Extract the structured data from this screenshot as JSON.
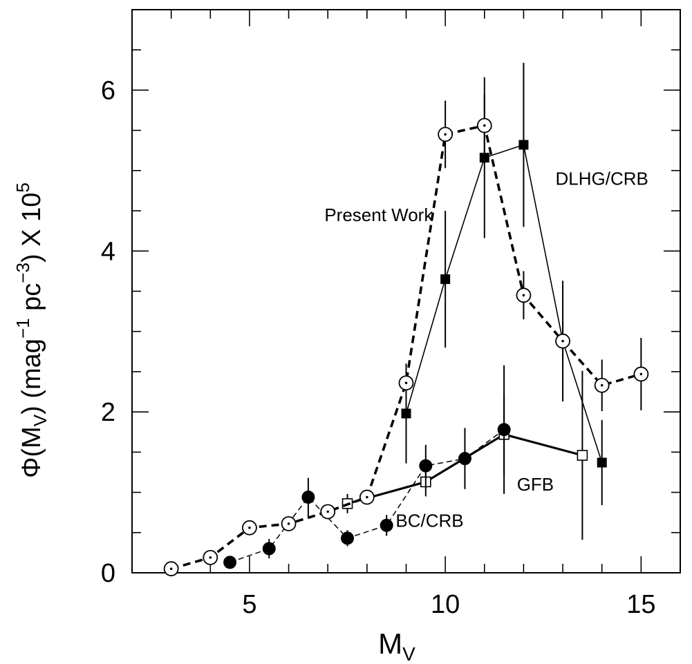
{
  "chart_data": {
    "type": "scatter",
    "title": "",
    "xlabel": {
      "main": "M",
      "sub": "V"
    },
    "ylabel": {
      "phi": "Φ",
      "open": "(M",
      "sub_v": "V",
      "mid": ") (mag",
      "sup1": "−1",
      "pc": " pc",
      "sup2": "−3",
      "tail": ") X 10",
      "sup3": "5"
    },
    "xlim": [
      2,
      16
    ],
    "ylim": [
      0,
      7
    ],
    "x_ticks": [
      5,
      10,
      15
    ],
    "y_ticks": [
      0,
      2,
      4,
      6
    ],
    "grid": false,
    "annotations": [
      {
        "text": "Present Work",
        "x": 8.3,
        "y": 4.45
      },
      {
        "text": "DLHG/CRB",
        "x": 14.0,
        "y": 4.9
      },
      {
        "text": "GFB",
        "x": 12.3,
        "y": 1.1
      },
      {
        "text": "BC/CRB",
        "x": 9.6,
        "y": 0.65
      }
    ],
    "series": [
      {
        "label_ref": "Present Work",
        "marker": "open-circle-dot",
        "line": "thick-dashed",
        "color": "#000000",
        "points": [
          {
            "x": 3,
            "y": 0.05,
            "err": 0
          },
          {
            "x": 4,
            "y": 0.19,
            "err": 0
          },
          {
            "x": 5,
            "y": 0.56,
            "err": 0.05
          },
          {
            "x": 6,
            "y": 0.61,
            "err": 0
          },
          {
            "x": 7,
            "y": 0.76,
            "err": 0.06
          },
          {
            "x": 8,
            "y": 0.94,
            "err": 0.06
          },
          {
            "x": 9,
            "y": 2.36,
            "err": 0.22
          },
          {
            "x": 10,
            "y": 5.45,
            "err": 0.42
          },
          {
            "x": 11,
            "y": 5.56,
            "err": 0.38
          },
          {
            "x": 12,
            "y": 3.45,
            "err": 0.3
          },
          {
            "x": 13,
            "y": 2.88,
            "err": 0.25
          },
          {
            "x": 14,
            "y": 2.33,
            "err": 0.32
          },
          {
            "x": 15,
            "y": 2.47,
            "err": 0.45
          }
        ]
      },
      {
        "label_ref": "DLHG/CRB",
        "marker": "filled-square",
        "line": "thin-solid",
        "color": "#000000",
        "points": [
          {
            "x": 9,
            "y": 1.98,
            "err": 0.62
          },
          {
            "x": 10,
            "y": 3.65,
            "err": 0.85
          },
          {
            "x": 11,
            "y": 5.16,
            "err": 1.0
          },
          {
            "x": 12,
            "y": 5.32,
            "err": 1.02
          },
          {
            "x": 13,
            "y": 2.88,
            "err": 0.75
          },
          {
            "x": 14,
            "y": 1.37,
            "err": 0.53
          }
        ]
      },
      {
        "label_ref": "GFB",
        "marker": "open-square",
        "line": "thick-solid",
        "color": "#000000",
        "points": [
          {
            "x": 7.5,
            "y": 0.86,
            "err": 0.12
          },
          {
            "x": 9.5,
            "y": 1.13,
            "err": 0.18
          },
          {
            "x": 11.5,
            "y": 1.72,
            "err": 0.5
          },
          {
            "x": 13.5,
            "y": 1.46,
            "err": 1.05
          }
        ]
      },
      {
        "label_ref": "BC/CRB",
        "marker": "filled-circle",
        "line": "thin-dashed",
        "color": "#000000",
        "points": [
          {
            "x": 4.5,
            "y": 0.13,
            "err": 0.08
          },
          {
            "x": 5.5,
            "y": 0.3,
            "err": 0.12
          },
          {
            "x": 6.5,
            "y": 0.94,
            "err": 0.24
          },
          {
            "x": 7.5,
            "y": 0.43,
            "err": 0.1
          },
          {
            "x": 8.5,
            "y": 0.59,
            "err": 0.13
          },
          {
            "x": 9.5,
            "y": 1.33,
            "err": 0.26
          },
          {
            "x": 10.5,
            "y": 1.42,
            "err": 0.38
          },
          {
            "x": 11.5,
            "y": 1.78,
            "err": 0.8
          }
        ]
      }
    ]
  }
}
